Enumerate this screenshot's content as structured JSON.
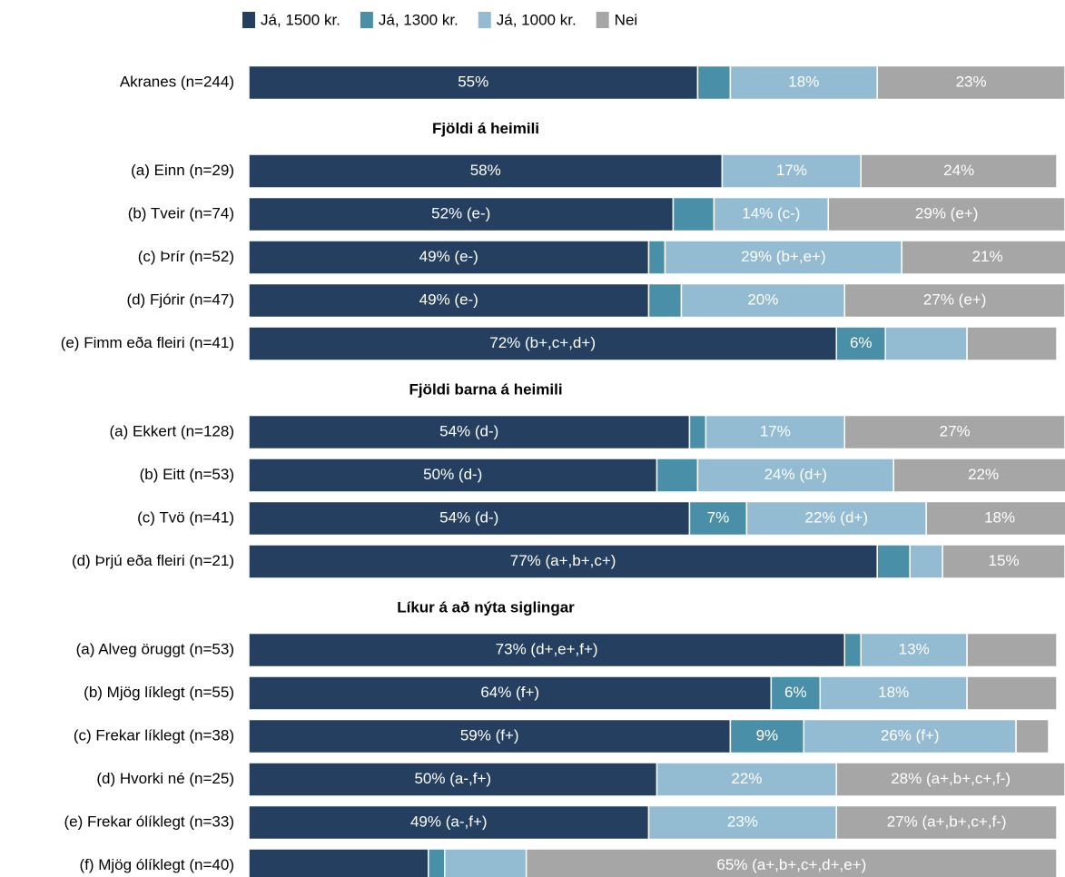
{
  "chart_data": {
    "type": "stacked-bar-horizontal",
    "xlim": [
      0,
      100
    ],
    "series": [
      {
        "name": "Já, 1500 kr.",
        "color": "#243f60"
      },
      {
        "name": "Já, 1300 kr.",
        "color": "#4a8fa8"
      },
      {
        "name": "Já, 1000 kr.",
        "color": "#93bcd2"
      },
      {
        "name": "Nei",
        "color": "#a6a6a6"
      }
    ],
    "groups": [
      {
        "categories": [
          "Akranes (n=244)"
        ],
        "values": [
          [
            55
          ],
          [
            4
          ],
          [
            18
          ],
          [
            23
          ]
        ],
        "value_labels": [
          [
            "55%"
          ],
          [
            null
          ],
          [
            "18%"
          ],
          [
            "23%"
          ]
        ]
      },
      {
        "title": "Fjöldi á heimili",
        "categories": [
          "(a) Einn (n=29)",
          "(b) Tveir (n=74)",
          "(c) Þrír (n=52)",
          "(d) Fjórir (n=47)",
          "(e) Fimm eða fleiri (n=41)"
        ],
        "values": [
          [
            58,
            52,
            49,
            49,
            72
          ],
          [
            0,
            5,
            2,
            4,
            6
          ],
          [
            17,
            14,
            29,
            20,
            10
          ],
          [
            24,
            29,
            21,
            27,
            11
          ]
        ],
        "value_labels": [
          [
            "58%",
            "52% (e-)",
            "49% (e-)",
            "49% (e-)",
            "72% (b+,c+,d+)"
          ],
          [
            null,
            null,
            null,
            null,
            "6%"
          ],
          [
            "17%",
            "14% (c-)",
            "29% (b+,e+)",
            "20%",
            null
          ],
          [
            "24%",
            "29% (e+)",
            "21%",
            "27% (e+)",
            null
          ]
        ]
      },
      {
        "title": "Fjöldi barna á heimili",
        "categories": [
          "(a) Ekkert (n=128)",
          "(b) Eitt (n=53)",
          "(c) Tvö (n=41)",
          "(d) Þrjú eða fleiri (n=21)"
        ],
        "values": [
          [
            54,
            50,
            54,
            77
          ],
          [
            2,
            5,
            7,
            4
          ],
          [
            17,
            24,
            22,
            4
          ],
          [
            27,
            22,
            18,
            15
          ]
        ],
        "value_labels": [
          [
            "54% (d-)",
            "50% (d-)",
            "54% (d-)",
            "77% (a+,b+,c+)"
          ],
          [
            null,
            null,
            "7%",
            null
          ],
          [
            "17%",
            "24% (d+)",
            "22% (d+)",
            null
          ],
          [
            "27%",
            "22%",
            "18%",
            "15%"
          ]
        ]
      },
      {
        "title": "Líkur á að nýta siglingar",
        "categories": [
          "(a) Alveg öruggt (n=53)",
          "(b) Mjög líklegt (n=55)",
          "(c) Frekar líklegt (n=38)",
          "(d) Hvorki né (n=25)",
          "(e) Frekar ólíklegt (n=33)",
          "(f) Mjög ólíklegt (n=40)"
        ],
        "values": [
          [
            73,
            64,
            59,
            50,
            49,
            22
          ],
          [
            2,
            6,
            9,
            0,
            0,
            2
          ],
          [
            13,
            18,
            26,
            22,
            23,
            10
          ],
          [
            11,
            11,
            4,
            28,
            27,
            65
          ]
        ],
        "value_labels": [
          [
            "73% (d+,e+,f+)",
            "64% (f+)",
            "59% (f+)",
            "50% (a-,f+)",
            "49% (a-,f+)",
            null
          ],
          [
            null,
            "6%",
            "9%",
            null,
            null,
            null
          ],
          [
            "13%",
            "18%",
            "26% (f+)",
            "22%",
            "23%",
            null
          ],
          [
            null,
            null,
            null,
            "28% (a+,b+,c+,f-)",
            "27% (a+,b+,c+,f-)",
            "65% (a+,b+,c+,d+,e+)"
          ]
        ]
      }
    ]
  }
}
